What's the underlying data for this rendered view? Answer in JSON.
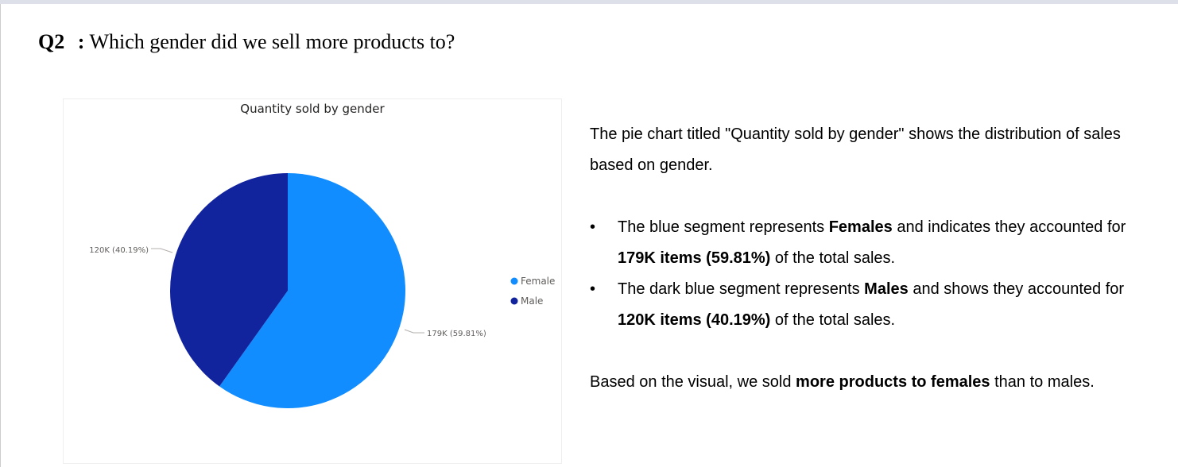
{
  "question": {
    "number": "Q2",
    "separator": ":",
    "text": "Which gender did we sell more products to?"
  },
  "chart_data": {
    "type": "pie",
    "title": "Quantity sold by gender",
    "categories": [
      "Female",
      "Male"
    ],
    "values": [
      179,
      120
    ],
    "percents": [
      59.81,
      40.19
    ],
    "data_labels": [
      "179K (59.81%)",
      "120K (40.19%)"
    ],
    "colors": [
      "#118dff",
      "#12239e"
    ],
    "legend": {
      "entries": [
        "Female",
        "Male"
      ],
      "placement": "right"
    }
  },
  "explanation": {
    "intro": "The pie chart titled \"Quantity sold by gender\" shows the distribution of sales based on gender.",
    "bullets": [
      {
        "bullet": "•",
        "p1": "The blue segment represents ",
        "b1": "Females",
        "p2": " and indicates they accounted for ",
        "b2": "179K items (59.81%)",
        "p3": " of the total sales."
      },
      {
        "bullet": "•",
        "p1": "The dark blue segment represents ",
        "b1": "Males",
        "p2": " and shows they accounted for ",
        "b2": "120K items (40.19%)",
        "p3": " of the total sales."
      }
    ],
    "conclusion": {
      "p1": "Based on the visual, we sold ",
      "b1": "more products to females",
      "p2": " than to males."
    }
  }
}
